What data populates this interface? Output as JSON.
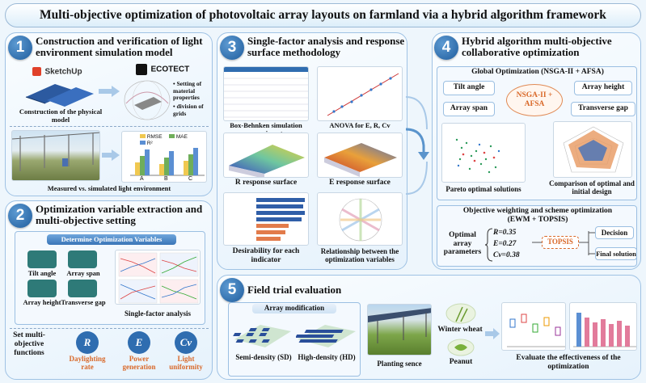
{
  "title": "Multi-objective optimization of photovoltaic array layouts on farmland via a hybrid algorithm framework",
  "p1": {
    "num": "1",
    "title": "Construction and verification of light environment simulation model",
    "sketchup": "SketchUp",
    "ecotect": "ECOTECT",
    "setting1": "• Setting of material properties",
    "setting2": "• division of grids",
    "physical": "Construction of the physical model",
    "legend_rmse": "RMSE",
    "legend_mae": "MAE",
    "legend_r2": "R²",
    "cats": [
      "A",
      "B",
      "C"
    ],
    "measured": "Measured vs. simulated light environment"
  },
  "p2": {
    "num": "2",
    "title": "Optimization variable extraction and multi-objective setting",
    "determine": "Determine Optimization Variables",
    "tilt": "Tilt angle",
    "span": "Array span",
    "height": "Array height",
    "gap": "Transverse gap",
    "sfa": "Single-factor analysis",
    "set": "Set multi-objective functions",
    "r_sym": "R",
    "e_sym": "E",
    "cv_sym": "Cv",
    "r_label": "Daylighting rate",
    "e_label": "Power generation",
    "cv_label": "Light uniformity"
  },
  "p3": {
    "num": "3",
    "title": "Single-factor analysis and response surface methodology",
    "bbd": "Box-Behnken simulation experiment",
    "anova": "ANOVA for E, R, Cv",
    "r_surface": "R response surface",
    "e_surface": "E response surface",
    "desirability": "Desirability for each indicator",
    "relationship": "Relationship between the optimization variables"
  },
  "p4": {
    "num": "4",
    "title": "Hybrid algorithm multi-objective collaborative optimization",
    "global": "Global Optimization (NSGA-II + AFSA)",
    "tilt": "Tilt angle",
    "height": "Array height",
    "span": "Array span",
    "gap": "Transverse gap",
    "hybrid": "NSGA-II + AFSA",
    "pareto": "Pareto optimal solutions",
    "compare": "Comparison of optimal and initial design",
    "weighting": "Objective weighting and scheme optimization (EWM + TOPSIS)",
    "optimal": "Optimal array parameters",
    "r_val": "R=0.35",
    "e_val": "E=0.27",
    "cv_val": "Cv=0.38",
    "topsis": "TOPSIS",
    "decision": "Decision",
    "final": "Final solution"
  },
  "p5": {
    "num": "5",
    "title": "Field trial evaluation",
    "array_mod": "Array modification",
    "sd": "Semi-density (SD)",
    "hd": "High-density (HD)",
    "planting": "Planting sence",
    "wheat": "Winter wheat",
    "peanut": "Peanut",
    "evaluate": "Evaluate the effectiveness of the optimization"
  },
  "colors": {
    "accent_blue": "#1f5d9d",
    "orange": "#d9692a",
    "panel_border": "#9fc2e4"
  }
}
